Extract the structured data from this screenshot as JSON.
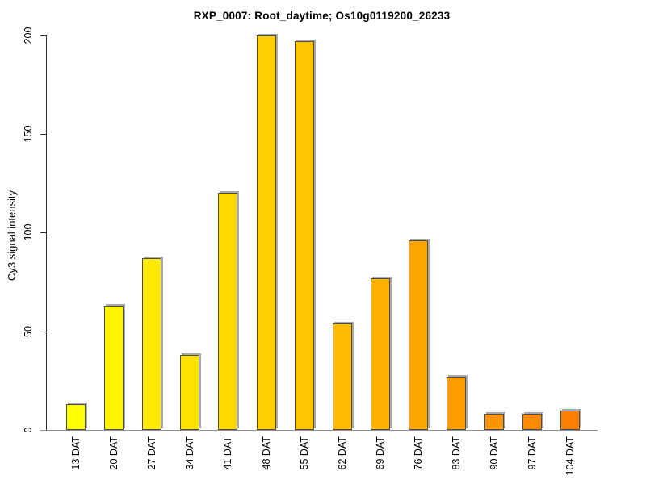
{
  "title": "RXP_0007: Root_daytime; Os10g0119200_26233",
  "chart_data": {
    "type": "bar",
    "title": "RXP_0007: Root_daytime; Os10g0119200_26233",
    "xlabel": "",
    "ylabel": "Cy3 signal intensity",
    "categories": [
      "13 DAT",
      "20 DAT",
      "27 DAT",
      "34 DAT",
      "41 DAT",
      "48 DAT",
      "55 DAT",
      "62 DAT",
      "69 DAT",
      "76 DAT",
      "83 DAT",
      "90 DAT",
      "97 DAT",
      "104 DAT"
    ],
    "values": [
      13,
      63,
      87,
      38,
      120,
      200,
      197,
      54,
      77,
      96,
      27,
      8,
      8,
      10
    ],
    "ylim": [
      0,
      200
    ],
    "yticks": [
      0,
      50,
      100,
      150,
      200
    ],
    "grid": false,
    "legend": false,
    "x_tick_rotation": 90,
    "bar_colors": [
      "#FFFF00",
      "#FFF500",
      "#FFEB00",
      "#FFE200",
      "#FFD800",
      "#FFCE00",
      "#FFC400",
      "#FFBB00",
      "#FFB100",
      "#FFA700",
      "#FF9D00",
      "#FF9400",
      "#FF8A00",
      "#FF8000"
    ],
    "colors": {
      "bar_border": "#4d4d4d",
      "bar_top_shadow": "#a9a9a9",
      "axis": "#2b2b2b",
      "baseline": "#909090",
      "text": "#000000",
      "background": "#ffffff"
    }
  }
}
